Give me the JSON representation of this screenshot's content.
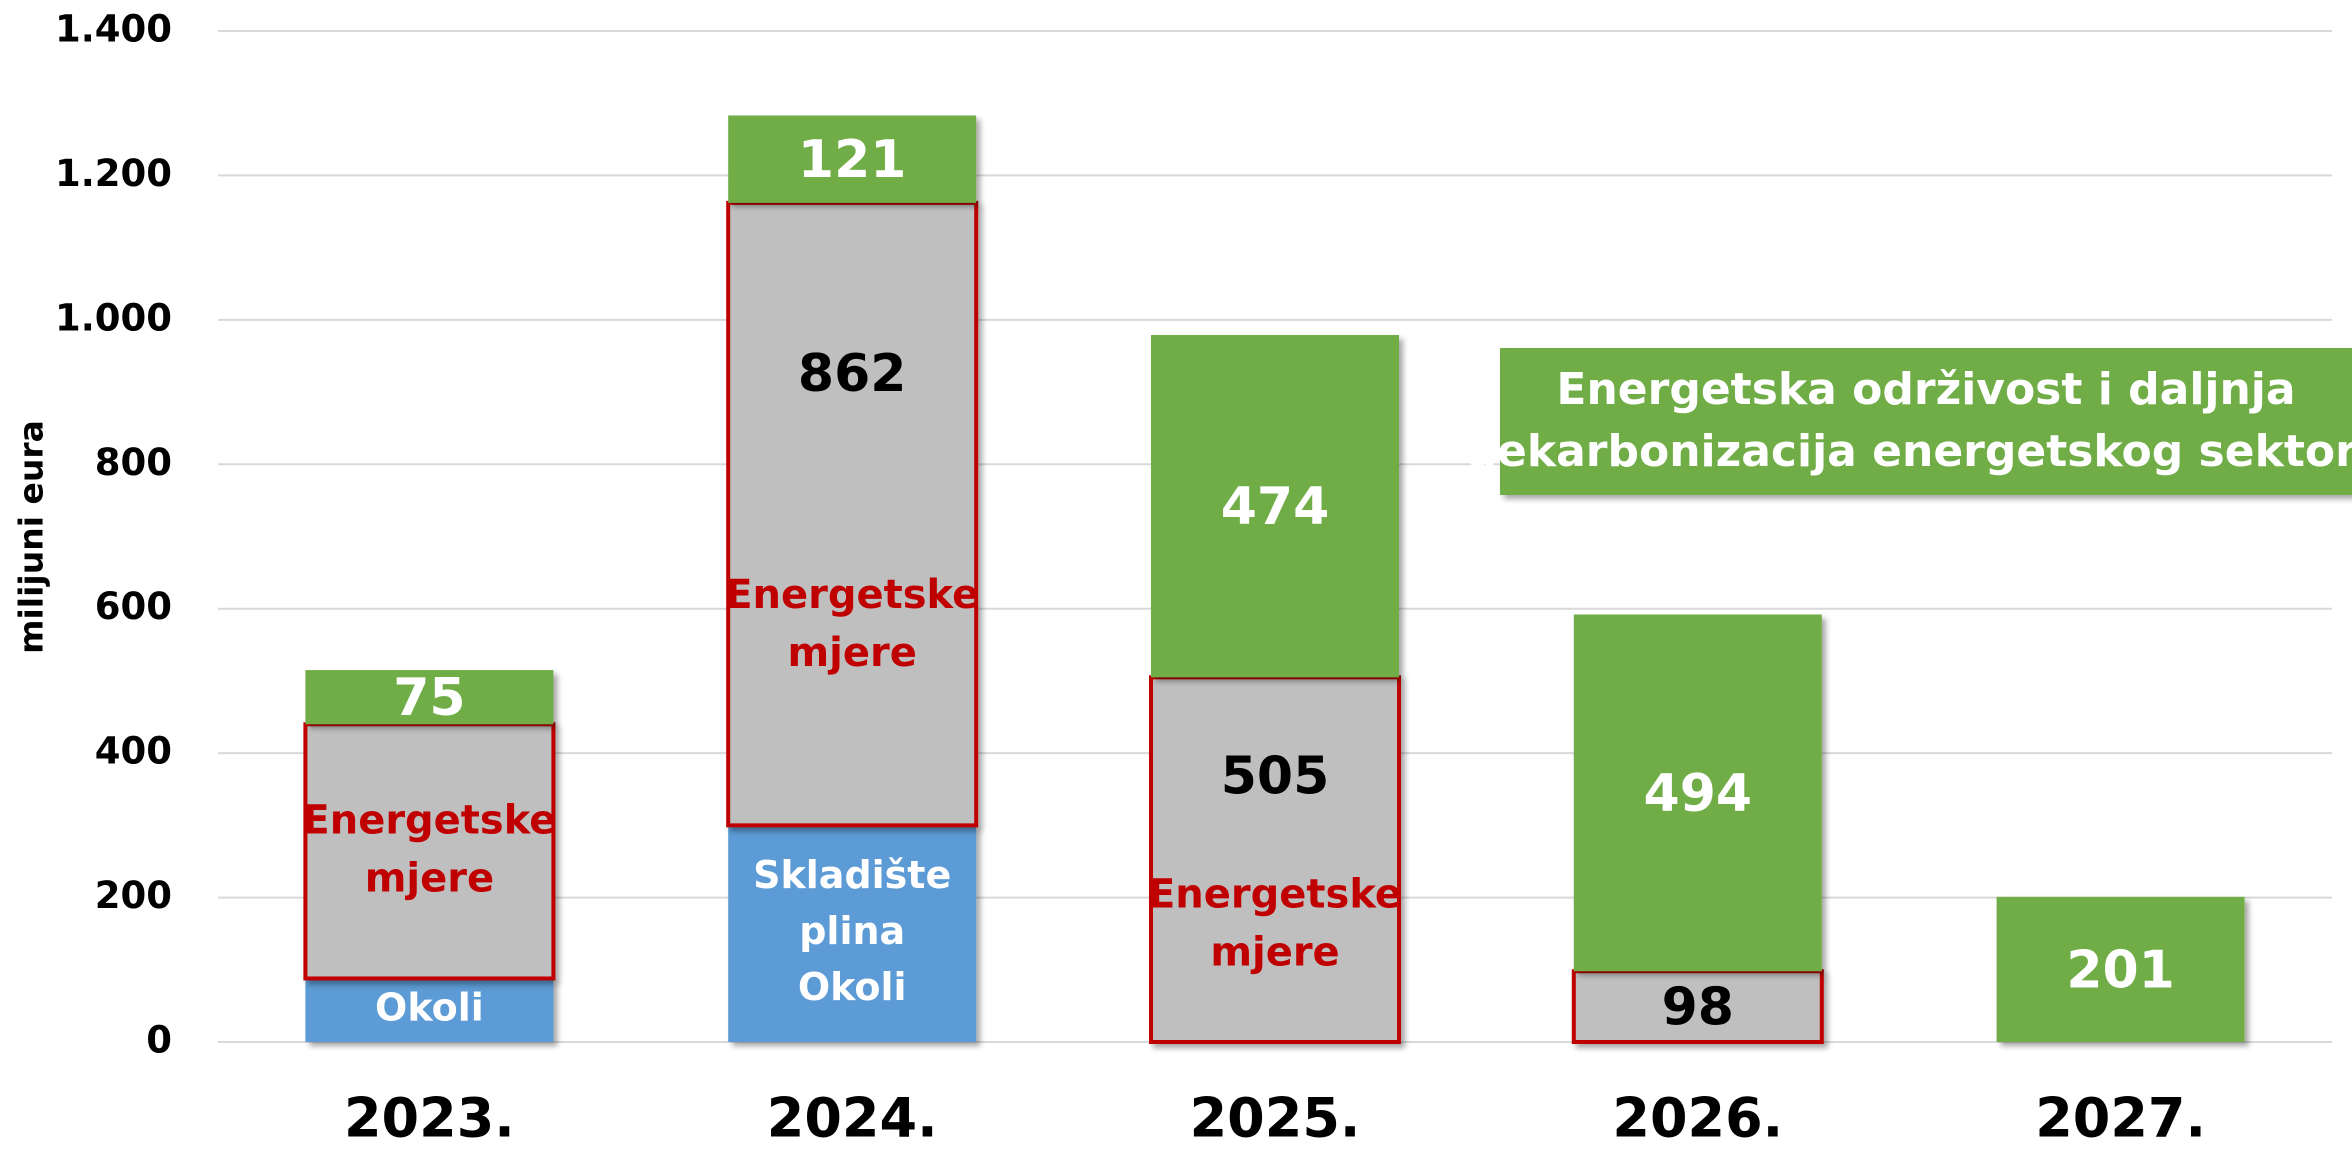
{
  "chart_data": {
    "type": "stacked_bar",
    "y_label": "milijuni eura",
    "categories": [
      "2023.",
      "2024.",
      "2025.",
      "2026.",
      "2027."
    ],
    "series": [
      {
        "color": "#5b9bd5",
        "values": [
          88,
          300,
          null,
          null,
          null
        ],
        "segment_labels": [
          [
            "Okoli"
          ],
          [
            "Skladište",
            "plina",
            "Okoli"
          ],
          null,
          null,
          null
        ],
        "label_color": "#ffffff"
      },
      {
        "color": "#bfbfbf",
        "stroke": "#c00000",
        "values": [
          352,
          862,
          505,
          98,
          null
        ],
        "value_labels": [
          null,
          "862",
          "505",
          "98",
          null
        ],
        "value_label_color": "#000000",
        "segment_labels": [
          [
            "Energetske",
            "mjere"
          ],
          [
            "Energetske",
            "mjere"
          ],
          [
            "Energetske",
            "mjere"
          ],
          null,
          null
        ],
        "label_color": "#c00000"
      },
      {
        "color": "#70ad47",
        "values": [
          75,
          121,
          474,
          494,
          201
        ],
        "value_labels": [
          "75",
          "121",
          "474",
          "494",
          "201"
        ],
        "value_label_color": "#ffffff"
      }
    ],
    "annotation": [
      "Energetska održivost i daljnja",
      "dekarbonizacija energetskog sektora"
    ],
    "annotation_color": "#70ad47",
    "ylim": [
      0,
      1400
    ],
    "yticks": [
      0,
      200,
      400,
      600,
      800,
      {
        "value": 1000,
        "label": "1.000"
      },
      {
        "value": 1200,
        "label": "1.200"
      },
      {
        "value": 1400,
        "label": "1.400"
      }
    ],
    "grid": true
  }
}
